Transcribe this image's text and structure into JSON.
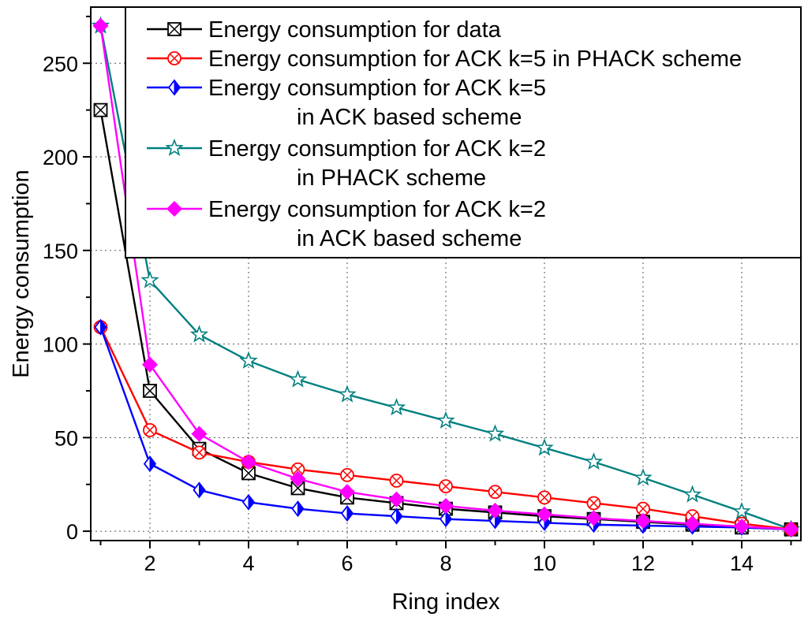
{
  "chart_data": {
    "type": "line",
    "title": "",
    "xlabel": "Ring index",
    "ylabel": "Energy consumption",
    "xlim": [
      0.8,
      15.2
    ],
    "ylim": [
      -5,
      280
    ],
    "xticks": [
      2,
      4,
      6,
      8,
      10,
      12,
      14
    ],
    "yticks": [
      0,
      50,
      100,
      150,
      200,
      250
    ],
    "grid": "dotted",
    "legend_position": "top-right",
    "x": [
      1,
      2,
      3,
      4,
      5,
      6,
      7,
      8,
      9,
      10,
      11,
      12,
      13,
      14,
      15
    ],
    "series": [
      {
        "name": "Energy consumption for data",
        "name_line2": "",
        "color": "#000000",
        "marker": "square-x",
        "values": [
          225,
          75,
          44,
          31,
          23,
          18,
          15,
          12,
          10,
          8,
          6.5,
          5,
          3.5,
          2,
          1
        ]
      },
      {
        "name": "Energy consumption for ACK k=5 in PHACK scheme",
        "name_line2": "",
        "color": "#ff0000",
        "marker": "circle-x",
        "values": [
          109,
          54,
          42,
          37,
          33,
          30,
          27,
          24,
          21,
          18,
          15,
          12,
          8,
          4,
          1
        ]
      },
      {
        "name": "Energy consumption for ACK k=5",
        "name_line2": "in ACK based scheme",
        "color": "#0000ff",
        "marker": "half-diamond",
        "values": [
          109,
          36,
          22,
          15.5,
          12,
          9.5,
          8,
          6.5,
          5.5,
          4.5,
          3.5,
          3,
          2.5,
          2,
          1
        ]
      },
      {
        "name": "Energy consumption for ACK k=2",
        "name_line2": "in PHACK scheme",
        "color": "#008080",
        "marker": "star",
        "values": [
          270,
          134,
          105,
          91,
          81,
          73,
          66,
          59,
          52,
          44.5,
          37,
          28.5,
          19.5,
          10.5,
          1
        ]
      },
      {
        "name": "Energy consumption for ACK k=2",
        "name_line2": "in ACK based scheme",
        "color": "#ff00ff",
        "marker": "diamond",
        "values": [
          270,
          89,
          52,
          37,
          28,
          21,
          17,
          13.5,
          11,
          9,
          7,
          5.5,
          4,
          2.5,
          1
        ]
      }
    ]
  }
}
